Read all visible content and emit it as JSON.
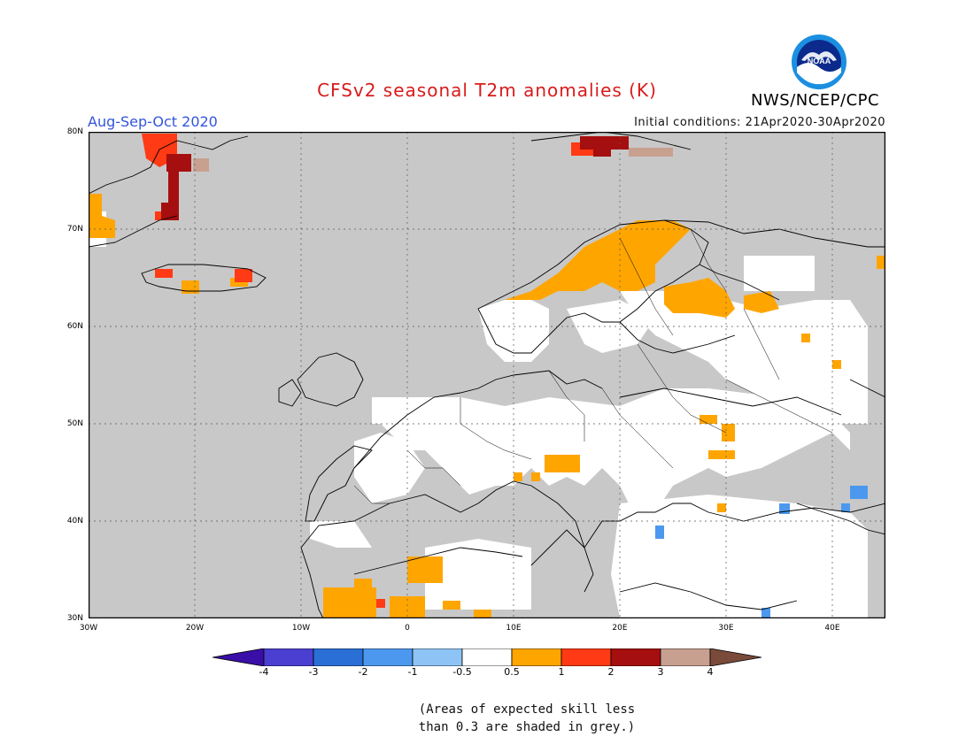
{
  "header": {
    "title": "CFSv2 seasonal T2m anomalies (K)",
    "season": "Aug-Sep-Oct 2020",
    "initial_conditions": "Initial conditions: 21Apr2020-30Apr2020",
    "agency": "NWS/NCEP/CPC",
    "logo_text": "NOAA"
  },
  "map": {
    "projection": "cylindrical",
    "lon_range": [
      -30,
      45
    ],
    "lat_range": [
      30,
      80
    ],
    "lat_labels": [
      "80N",
      "70N",
      "60N",
      "50N",
      "40N",
      "30N"
    ],
    "lon_labels": [
      "30W",
      "20W",
      "10W",
      "0",
      "10E",
      "20E",
      "30E",
      "40E"
    ],
    "grid": "dotted",
    "background_color": "#c8c8c8"
  },
  "colorbar": {
    "labels": [
      "-4",
      "-3",
      "-2",
      "-1",
      "-0.5",
      "0.5",
      "1",
      "2",
      "3",
      "4"
    ],
    "colors": [
      "#3a0fa8",
      "#4a3fd0",
      "#2a6fd6",
      "#4c98ee",
      "#8ec4f5",
      "#ffffff",
      "#ffa500",
      "#ff3a14",
      "#a50f0f",
      "#c8a090",
      "#7a4a3a"
    ]
  },
  "note": {
    "line1": "(Areas of expected skill less",
    "line2": "than 0.3 are shaded in grey.)"
  }
}
